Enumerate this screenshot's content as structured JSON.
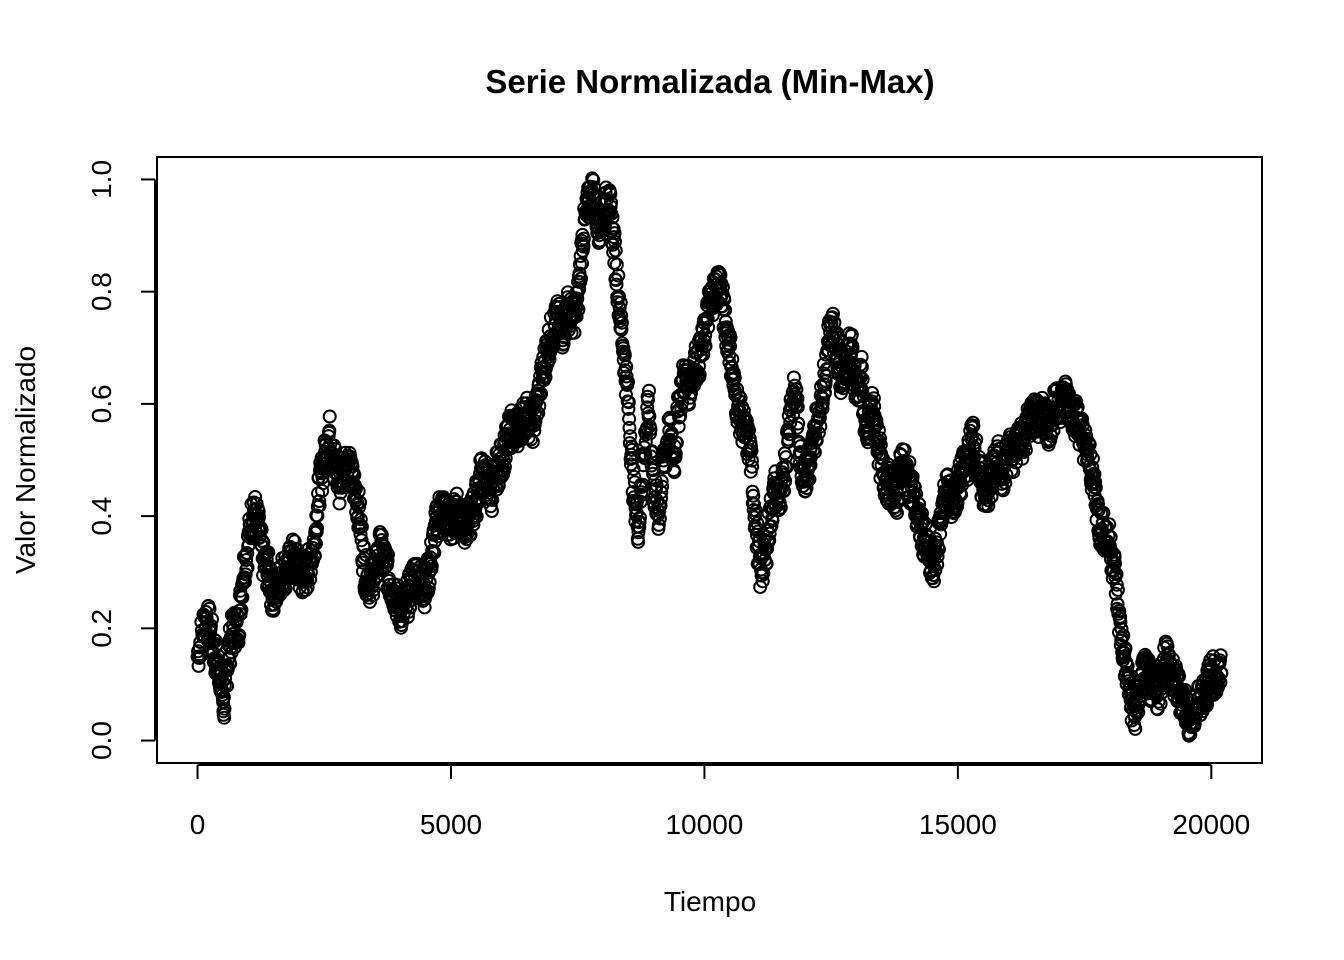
{
  "chart_data": {
    "type": "scatter",
    "title": "Serie Normalizada (Min-Max)",
    "xlabel": "Tiempo",
    "ylabel": "Valor Normalizado",
    "xlim": [
      -800,
      21000
    ],
    "ylim": [
      -0.04,
      1.04
    ],
    "x_ticks": [
      0,
      5000,
      10000,
      15000,
      20000
    ],
    "x_tick_labels": [
      "0",
      "5000",
      "10000",
      "15000",
      "20000"
    ],
    "y_ticks": [
      0.0,
      0.2,
      0.4,
      0.6,
      0.8,
      1.0
    ],
    "y_tick_labels": [
      "0.0",
      "0.2",
      "0.4",
      "0.6",
      "0.8",
      "1.0"
    ],
    "grid": false,
    "legend": "none",
    "marker": "open-circle",
    "color": "#000000",
    "series_points": [
      [
        0,
        0.15
      ],
      [
        150,
        0.22
      ],
      [
        250,
        0.2
      ],
      [
        350,
        0.15
      ],
      [
        450,
        0.12
      ],
      [
        520,
        0.06
      ],
      [
        600,
        0.15
      ],
      [
        700,
        0.2
      ],
      [
        800,
        0.2
      ],
      [
        900,
        0.3
      ],
      [
        1000,
        0.35
      ],
      [
        1100,
        0.42
      ],
      [
        1200,
        0.38
      ],
      [
        1300,
        0.32
      ],
      [
        1400,
        0.3
      ],
      [
        1500,
        0.25
      ],
      [
        1600,
        0.29
      ],
      [
        1700,
        0.3
      ],
      [
        1800,
        0.31
      ],
      [
        1900,
        0.33
      ],
      [
        2000,
        0.3
      ],
      [
        2100,
        0.29
      ],
      [
        2200,
        0.31
      ],
      [
        2300,
        0.35
      ],
      [
        2400,
        0.45
      ],
      [
        2500,
        0.5
      ],
      [
        2600,
        0.55
      ],
      [
        2700,
        0.5
      ],
      [
        2800,
        0.45
      ],
      [
        2900,
        0.5
      ],
      [
        3000,
        0.48
      ],
      [
        3100,
        0.45
      ],
      [
        3200,
        0.4
      ],
      [
        3300,
        0.3
      ],
      [
        3400,
        0.28
      ],
      [
        3500,
        0.3
      ],
      [
        3600,
        0.34
      ],
      [
        3700,
        0.32
      ],
      [
        3800,
        0.28
      ],
      [
        3900,
        0.26
      ],
      [
        4000,
        0.23
      ],
      [
        4100,
        0.24
      ],
      [
        4200,
        0.27
      ],
      [
        4300,
        0.3
      ],
      [
        4400,
        0.28
      ],
      [
        4500,
        0.27
      ],
      [
        4600,
        0.32
      ],
      [
        4700,
        0.38
      ],
      [
        4800,
        0.42
      ],
      [
        4900,
        0.4
      ],
      [
        5000,
        0.38
      ],
      [
        5100,
        0.41
      ],
      [
        5200,
        0.4
      ],
      [
        5300,
        0.38
      ],
      [
        5400,
        0.4
      ],
      [
        5500,
        0.43
      ],
      [
        5600,
        0.48
      ],
      [
        5700,
        0.46
      ],
      [
        5800,
        0.44
      ],
      [
        5900,
        0.48
      ],
      [
        6000,
        0.5
      ],
      [
        6100,
        0.53
      ],
      [
        6200,
        0.56
      ],
      [
        6300,
        0.55
      ],
      [
        6400,
        0.57
      ],
      [
        6500,
        0.58
      ],
      [
        6600,
        0.56
      ],
      [
        6700,
        0.6
      ],
      [
        6800,
        0.65
      ],
      [
        6900,
        0.7
      ],
      [
        7000,
        0.73
      ],
      [
        7100,
        0.75
      ],
      [
        7200,
        0.73
      ],
      [
        7300,
        0.77
      ],
      [
        7400,
        0.75
      ],
      [
        7500,
        0.78
      ],
      [
        7600,
        0.9
      ],
      [
        7700,
        0.95
      ],
      [
        7800,
        0.98
      ],
      [
        7900,
        0.92
      ],
      [
        8000,
        0.93
      ],
      [
        8100,
        0.97
      ],
      [
        8200,
        0.9
      ],
      [
        8300,
        0.8
      ],
      [
        8400,
        0.7
      ],
      [
        8500,
        0.6
      ],
      [
        8600,
        0.45
      ],
      [
        8700,
        0.38
      ],
      [
        8800,
        0.5
      ],
      [
        8900,
        0.6
      ],
      [
        9000,
        0.45
      ],
      [
        9100,
        0.4
      ],
      [
        9200,
        0.5
      ],
      [
        9300,
        0.55
      ],
      [
        9400,
        0.5
      ],
      [
        9500,
        0.6
      ],
      [
        9600,
        0.65
      ],
      [
        9700,
        0.63
      ],
      [
        9800,
        0.67
      ],
      [
        9900,
        0.68
      ],
      [
        10000,
        0.72
      ],
      [
        10100,
        0.78
      ],
      [
        10200,
        0.8
      ],
      [
        10300,
        0.82
      ],
      [
        10400,
        0.75
      ],
      [
        10500,
        0.7
      ],
      [
        10600,
        0.62
      ],
      [
        10700,
        0.58
      ],
      [
        10800,
        0.55
      ],
      [
        10900,
        0.52
      ],
      [
        11000,
        0.4
      ],
      [
        11100,
        0.3
      ],
      [
        11200,
        0.33
      ],
      [
        11300,
        0.4
      ],
      [
        11400,
        0.45
      ],
      [
        11500,
        0.42
      ],
      [
        11600,
        0.5
      ],
      [
        11700,
        0.6
      ],
      [
        11800,
        0.62
      ],
      [
        11900,
        0.5
      ],
      [
        12000,
        0.47
      ],
      [
        12100,
        0.5
      ],
      [
        12200,
        0.56
      ],
      [
        12300,
        0.6
      ],
      [
        12400,
        0.67
      ],
      [
        12500,
        0.75
      ],
      [
        12600,
        0.7
      ],
      [
        12700,
        0.65
      ],
      [
        12800,
        0.68
      ],
      [
        12900,
        0.7
      ],
      [
        13000,
        0.62
      ],
      [
        13100,
        0.65
      ],
      [
        13200,
        0.52
      ],
      [
        13300,
        0.6
      ],
      [
        13400,
        0.55
      ],
      [
        13500,
        0.48
      ],
      [
        13600,
        0.46
      ],
      [
        13700,
        0.45
      ],
      [
        13800,
        0.44
      ],
      [
        13900,
        0.5
      ],
      [
        14000,
        0.47
      ],
      [
        14100,
        0.45
      ],
      [
        14200,
        0.4
      ],
      [
        14300,
        0.37
      ],
      [
        14400,
        0.34
      ],
      [
        14500,
        0.3
      ],
      [
        14600,
        0.35
      ],
      [
        14700,
        0.42
      ],
      [
        14800,
        0.45
      ],
      [
        14900,
        0.42
      ],
      [
        15000,
        0.45
      ],
      [
        15100,
        0.48
      ],
      [
        15200,
        0.5
      ],
      [
        15300,
        0.55
      ],
      [
        15400,
        0.48
      ],
      [
        15500,
        0.45
      ],
      [
        15600,
        0.44
      ],
      [
        15700,
        0.48
      ],
      [
        15800,
        0.5
      ],
      [
        15900,
        0.47
      ],
      [
        16000,
        0.52
      ],
      [
        16100,
        0.5
      ],
      [
        16200,
        0.55
      ],
      [
        16300,
        0.53
      ],
      [
        16400,
        0.57
      ],
      [
        16500,
        0.58
      ],
      [
        16600,
        0.57
      ],
      [
        16700,
        0.58
      ],
      [
        16800,
        0.56
      ],
      [
        16900,
        0.59
      ],
      [
        17000,
        0.6
      ],
      [
        17100,
        0.61
      ],
      [
        17200,
        0.6
      ],
      [
        17300,
        0.58
      ],
      [
        17400,
        0.56
      ],
      [
        17500,
        0.53
      ],
      [
        17600,
        0.5
      ],
      [
        17700,
        0.45
      ],
      [
        17800,
        0.38
      ],
      [
        17900,
        0.37
      ],
      [
        18000,
        0.35
      ],
      [
        18100,
        0.3
      ],
      [
        18200,
        0.2
      ],
      [
        18300,
        0.14
      ],
      [
        18400,
        0.08
      ],
      [
        18500,
        0.04
      ],
      [
        18600,
        0.1
      ],
      [
        18700,
        0.13
      ],
      [
        18800,
        0.1
      ],
      [
        18900,
        0.08
      ],
      [
        19000,
        0.1
      ],
      [
        19100,
        0.16
      ],
      [
        19200,
        0.12
      ],
      [
        19300,
        0.1
      ],
      [
        19400,
        0.08
      ],
      [
        19500,
        0.06
      ],
      [
        19600,
        0.03
      ],
      [
        19700,
        0.06
      ],
      [
        19800,
        0.08
      ],
      [
        19900,
        0.09
      ],
      [
        20000,
        0.12
      ],
      [
        20100,
        0.11
      ],
      [
        20200,
        0.12
      ]
    ]
  }
}
